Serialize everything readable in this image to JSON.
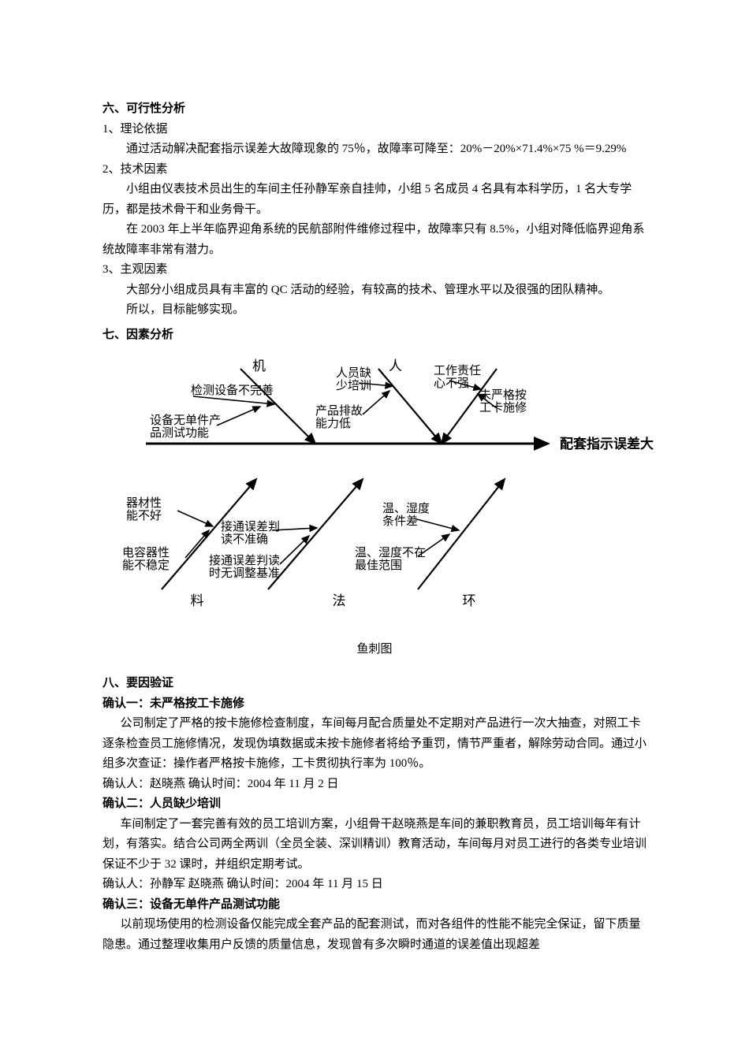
{
  "section6": {
    "title": "六、可行性分析",
    "item1_label": "1、理论依据",
    "item1_body": "通过活动解决配套指示误差大故障现象的 75％，故障率可降至：20%－20%×71.4%×75 %＝9.29%",
    "item2_label": "2、技术因素",
    "item2_body1": "小组由仪表技术员出生的车间主任孙静军亲自挂帅，小组 5 名成员 4 名具有本科学历，1 名大专学历，都是技术骨干和业务骨干。",
    "item2_body2": "在 2003 年上半年临界迎角系统的民航部附件维修过程中，故障率只有 8.5%，小组对降低临界迎角系统故障率非常有潜力。",
    "item3_label": "3、主观因素",
    "item3_body1": "大部分小组成员具有丰富的 QC 活动的经验，有较高的技术、管理水平以及很强的团队精神。",
    "item3_concl": "所以，目标能够实现。"
  },
  "section7": {
    "title": "七、因素分析",
    "caption": "鱼刺图",
    "fishbone": {
      "result": "配套指示误差大",
      "categories": {
        "machine": "机",
        "man": "人",
        "material": "料",
        "method": "法",
        "env": "环"
      },
      "causes": {
        "c_machine_1": "检测设备不完善",
        "c_machine_2a": "设备无单件产",
        "c_machine_2b": "品测试功能",
        "c_man_top_a": "人员缺",
        "c_man_top_b": "少培训",
        "c_man_mid_a": "产品排故",
        "c_man_mid_b": "能力低",
        "c_man_r1a": "工作责任",
        "c_man_r1b": "心不强",
        "c_man_r2a": "未严格按",
        "c_man_r2b": "工卡施修",
        "c_mat_1a": "器材性",
        "c_mat_1b": "能不好",
        "c_mat_2a": "电容器性",
        "c_mat_2b": "能不稳定",
        "c_meth_1a": "接通误差判",
        "c_meth_1b": "读不准确",
        "c_meth_2a": "接通误差判读",
        "c_meth_2b": "时无调整基准",
        "c_env_1a": "温、湿度",
        "c_env_1b": "条件差",
        "c_env_2a": "温、湿度不在",
        "c_env_2b": "最佳范围"
      },
      "style": {
        "stroke": "#000000",
        "spine_width": 3,
        "branch_width": 2.2,
        "sub_width": 1.6,
        "font_cat": 17,
        "font_cause": 15,
        "font_result": 17,
        "result_bold": "bold"
      }
    }
  },
  "section8": {
    "title": "八、要因验证",
    "c1_title": "确认一：未严格按工卡施修",
    "c1_body": "公司制定了严格的按卡施修检查制度，车间每月配合质量处不定期对产品进行一次大抽查，对照工卡逐条检查员工施修情况，发现伪填数据或未按卡施修者将给予重罚，情节严重者，解除劳动合同。通过小组多次查证：操作者严格按卡施修，工卡贯彻执行率为 100％。",
    "c1_sign": "确认人：赵晓燕  确认时间：2004 年 11 月 2 日",
    "c2_title": "确认二：人员缺少培训",
    "c2_body": "车间制定了一套完善有效的员工培训方案，小组骨干赵晓燕是车间的兼职教育员，员工培训每年有计划，有落实。结合公司两全两训（全员全装、深训精训）教育活动，车间每月对员工进行的各类专业培训保证不少于 32 课时，并组织定期考试。",
    "c2_sign": "确认人：孙静军  赵晓燕  确认时间：2004 年 11 月 15 日",
    "c3_title": "确认三：设备无单件产品测试功能",
    "c3_body": "以前现场使用的检测设备仅能完成全套产品的配套测试，而对各组件的性能不能完全保证，留下质量隐患。通过整理收集用户反馈的质量信息，发现曾有多次瞬时通道的误差值出现超差"
  }
}
